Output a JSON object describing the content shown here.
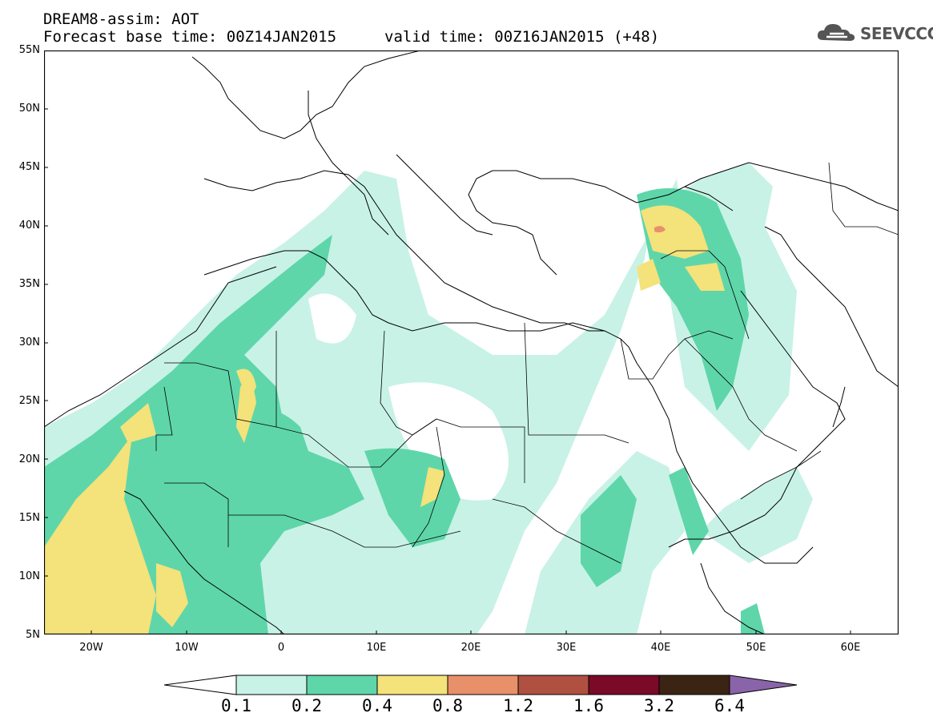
{
  "header": {
    "title_line1": "DREAM8-assim: AOT",
    "title_line2": "Forecast base time: 00Z14JAN2015",
    "valid_time": "valid time: 00Z16JAN2015 (+48)",
    "logo_text": "SEEVCCC"
  },
  "map": {
    "lat_labels": [
      "55N",
      "50N",
      "45N",
      "40N",
      "35N",
      "30N",
      "25N",
      "20N",
      "15N",
      "10N",
      "5N"
    ],
    "lon_labels": [
      "20W",
      "10W",
      "0",
      "10E",
      "20E",
      "30E",
      "40E",
      "50E",
      "60E"
    ],
    "lat_range": [
      5,
      55
    ],
    "lon_range": [
      -25,
      65
    ]
  },
  "colorbar": {
    "labels": [
      "0.1",
      "0.2",
      "0.4",
      "0.8",
      "1.2",
      "1.6",
      "3.2",
      "6.4"
    ],
    "colors": [
      "#ffffff",
      "#c8f2e6",
      "#5ed6aa",
      "#f4e27a",
      "#e8906a",
      "#b05040",
      "#7a0a28",
      "#3c2414",
      "#8a64a8"
    ]
  }
}
